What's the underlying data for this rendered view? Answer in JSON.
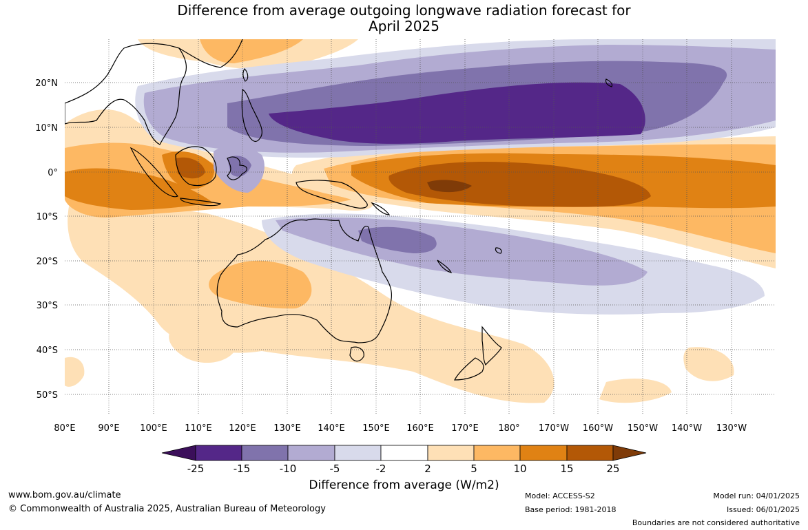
{
  "title": {
    "line1": "Difference from average outgoing longwave radiation forecast for",
    "line2": "April 2025"
  },
  "map": {
    "lat_labels": [
      "20°N",
      "10°N",
      "0°",
      "10°S",
      "20°S",
      "30°S",
      "40°S",
      "50°S"
    ],
    "lon_labels": [
      "80°E",
      "90°E",
      "100°E",
      "110°E",
      "120°E",
      "130°E",
      "140°E",
      "150°E",
      "160°E",
      "170°E",
      "180°",
      "170°W",
      "160°W",
      "150°W",
      "140°W",
      "130°W"
    ]
  },
  "colorbar": {
    "tick_labels": [
      "-25",
      "-15",
      "-10",
      "-5",
      "-2",
      "2",
      "5",
      "10",
      "15",
      "25"
    ],
    "colors": [
      "#3b0f5a",
      "#542788",
      "#8073ac",
      "#b2abd2",
      "#d8daeb",
      "#ffffff",
      "#fee0b6",
      "#fdb863",
      "#e08214",
      "#b35806",
      "#7f3b08"
    ],
    "title": "Difference from average (W/m2)"
  },
  "footer": {
    "website": "www.bom.gov.au/climate",
    "copyright": "© Commonwealth of Australia 2025, Australian Bureau of Meteorology",
    "model": "Model: ACCESS-S2",
    "base_period": "Base period: 1981-2018",
    "model_run": "Model run: 04/01/2025",
    "issued": "Issued: 06/01/2025",
    "disclaimer": "Boundaries are not considered authoritative"
  }
}
